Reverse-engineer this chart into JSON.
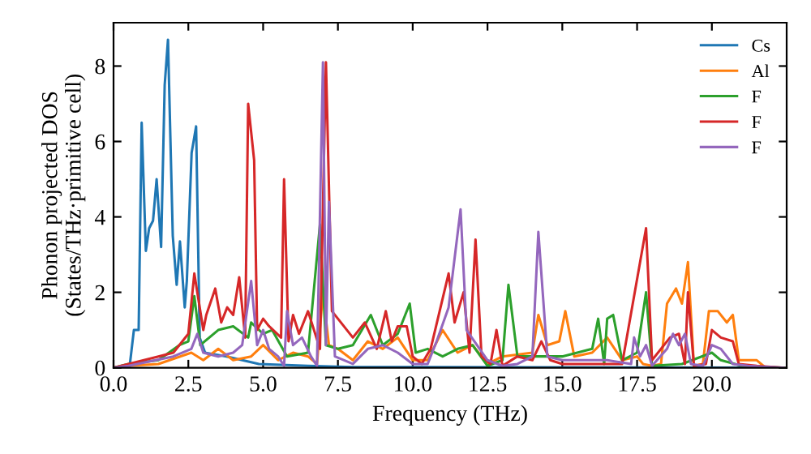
{
  "chart_data": {
    "type": "line",
    "xlabel": "Frequency (THz)",
    "ylabel": "Phonon projected DOS\n(States/THz·primitive cell)",
    "xlim": [
      0,
      22.5
    ],
    "ylim": [
      0,
      9.15
    ],
    "xticks": [
      {
        "value": 0,
        "label": "0.0"
      },
      {
        "value": 2.5,
        "label": "2.5"
      },
      {
        "value": 5,
        "label": "5.0"
      },
      {
        "value": 7.5,
        "label": "7.5"
      },
      {
        "value": 10,
        "label": "10.0"
      },
      {
        "value": 12.5,
        "label": "12.5"
      },
      {
        "value": 15,
        "label": "15.0"
      },
      {
        "value": 17.5,
        "label": "17.5"
      },
      {
        "value": 20,
        "label": "20.0"
      }
    ],
    "yticks": [
      0,
      2,
      4,
      6,
      8
    ],
    "grid": false,
    "legend": "top right",
    "marker": "none",
    "line_style": "solid",
    "series": [
      {
        "name": "Cs",
        "color": "#1f77b4",
        "x": [
          0,
          0.54,
          0.68,
          0.84,
          0.94,
          1.08,
          1.19,
          1.32,
          1.44,
          1.59,
          1.71,
          1.82,
          1.98,
          2.11,
          2.22,
          2.38,
          2.45,
          2.61,
          2.76,
          2.88,
          3.06,
          3.78,
          4.86,
          6.5,
          8,
          22.4
        ],
        "values": [
          0,
          0.05,
          1.0,
          1.0,
          6.5,
          3.1,
          3.7,
          3.9,
          5.0,
          3.2,
          7.5,
          8.7,
          3.5,
          2.2,
          3.35,
          1.6,
          2.3,
          5.7,
          6.4,
          0.8,
          0.4,
          0.3,
          0.1,
          0.05,
          0.02,
          0
        ]
      },
      {
        "name": "Al",
        "color": "#ff7f0e",
        "x": [
          0,
          0.5,
          1.5,
          2.6,
          3.0,
          3.5,
          4.0,
          4.6,
          5.0,
          5.5,
          6.0,
          6.5,
          6.8,
          7.0,
          7.2,
          7.5,
          8,
          8.5,
          9,
          9.5,
          10,
          10.5,
          11,
          11.5,
          12,
          12.5,
          13,
          14,
          14.2,
          14.5,
          14.9,
          15.1,
          15.4,
          16,
          16.5,
          17,
          17.5,
          17.7,
          18,
          18.3,
          18.5,
          18.8,
          19,
          19.2,
          19.4,
          19.7,
          19.9,
          20.2,
          20.5,
          20.7,
          20.9,
          21.5,
          21.8,
          22.4
        ],
        "values": [
          0,
          0.05,
          0.1,
          0.4,
          0.2,
          0.5,
          0.2,
          0.3,
          0.6,
          0.2,
          0.4,
          0.3,
          0.1,
          2.0,
          0.6,
          0.5,
          0.2,
          0.7,
          0.5,
          0.8,
          0.2,
          0.2,
          1.0,
          0.4,
          0.6,
          0.1,
          0.3,
          0.4,
          1.4,
          0.6,
          0.7,
          1.5,
          0.3,
          0.4,
          0.8,
          0.2,
          0.3,
          0.1,
          0.05,
          0.1,
          1.7,
          2.1,
          1.7,
          2.8,
          0.05,
          0.1,
          1.5,
          1.5,
          1.2,
          1.4,
          0.2,
          0.2,
          0,
          0
        ]
      },
      {
        "name": "F",
        "color": "#2ca02c",
        "x": [
          0,
          0.5,
          1.5,
          2.2,
          2.5,
          2.7,
          2.9,
          3.5,
          4,
          4.5,
          4.6,
          5,
          5.3,
          5.8,
          6.5,
          6.9,
          7.1,
          7.5,
          8.0,
          8.6,
          9,
          9.5,
          9.9,
          10.1,
          10.5,
          11,
          11.5,
          12,
          12.5,
          13.0,
          13.2,
          13.5,
          14,
          15,
          16,
          16.2,
          16.4,
          16.5,
          16.7,
          17,
          17.5,
          17.8,
          18,
          19,
          20,
          20.3,
          21,
          22.4
        ],
        "values": [
          0,
          0.1,
          0.2,
          0.6,
          0.7,
          1.9,
          0.6,
          1.0,
          1.1,
          0.8,
          1.2,
          0.9,
          1.0,
          0.3,
          0.4,
          3.8,
          0.6,
          0.5,
          0.6,
          1.4,
          0.6,
          0.9,
          1.7,
          0.4,
          0.5,
          0.3,
          0.5,
          0.6,
          0.05,
          0.2,
          2.2,
          0.3,
          0.3,
          0.3,
          0.5,
          1.3,
          0.1,
          1.3,
          1.4,
          0.2,
          0.4,
          2.0,
          0.05,
          0.1,
          0.4,
          0.2,
          0.05,
          0
        ]
      },
      {
        "name": "F",
        "color": "#d62728",
        "x": [
          0,
          0.5,
          1.5,
          2.0,
          2.5,
          2.7,
          3.0,
          3.1,
          3.4,
          3.6,
          3.8,
          4.0,
          4.2,
          4.4,
          4.5,
          4.7,
          4.8,
          5.0,
          5.2,
          5.6,
          5.7,
          5.85,
          6.0,
          6.2,
          6.5,
          6.9,
          7.1,
          7.3,
          7.5,
          8,
          8.4,
          8.8,
          9.1,
          9.3,
          9.5,
          9.8,
          10,
          10.3,
          10.6,
          10.9,
          11.2,
          11.4,
          11.7,
          11.9,
          12.1,
          12.3,
          12.6,
          12.8,
          13,
          13.5,
          14,
          14.3,
          14.6,
          15,
          17,
          17.8,
          18,
          18.6,
          18.9,
          19.1,
          19.2,
          19.4,
          19.8,
          20,
          20.3,
          20.7,
          20.9,
          21.5,
          22.4
        ],
        "values": [
          0,
          0.1,
          0.3,
          0.4,
          0.9,
          2.5,
          1.0,
          1.4,
          2.1,
          1.2,
          1.6,
          1.4,
          2.4,
          0.8,
          7.0,
          5.5,
          1.0,
          1.3,
          1.1,
          0.8,
          5.0,
          0.7,
          1.4,
          0.9,
          1.5,
          0.5,
          8.1,
          1.5,
          1.3,
          0.8,
          1.2,
          0.5,
          1.5,
          0.7,
          1.1,
          1.1,
          0.3,
          0.1,
          0.5,
          1.5,
          2.5,
          1.2,
          2.0,
          0.4,
          3.4,
          0.3,
          0.1,
          1.0,
          0.05,
          0.3,
          0.2,
          0.7,
          0.2,
          0.1,
          0.1,
          3.7,
          0.2,
          0.8,
          0.9,
          0.1,
          2.0,
          0.05,
          0.1,
          1.0,
          0.8,
          0.7,
          0.1,
          0.05,
          0
        ]
      },
      {
        "name": "F",
        "color": "#9467bd",
        "x": [
          0,
          0.5,
          2.0,
          2.6,
          2.8,
          3.0,
          3.5,
          4.0,
          4.3,
          4.6,
          4.8,
          5.0,
          5.2,
          5.5,
          5.7,
          5.8,
          6.0,
          6.3,
          6.6,
          6.8,
          7.0,
          7.1,
          7.2,
          7.4,
          8,
          8.5,
          9,
          9.5,
          10,
          10.5,
          10.8,
          11.2,
          11.6,
          11.8,
          12.5,
          13,
          13.5,
          14.0,
          14.2,
          14.5,
          15,
          16.5,
          17.3,
          17.4,
          17.6,
          17.8,
          18.0,
          18.5,
          18.7,
          18.9,
          19.1,
          19.3,
          19.7,
          20.0,
          20.3,
          20.7,
          21.2,
          22.4
        ],
        "values": [
          0,
          0.05,
          0.3,
          0.5,
          0.9,
          0.4,
          0.3,
          0.4,
          0.6,
          2.3,
          0.6,
          1.0,
          0.5,
          0.3,
          0.05,
          1.5,
          0.6,
          0.8,
          0.3,
          0.05,
          8.1,
          0.6,
          4.4,
          0.3,
          0.1,
          0.5,
          0.6,
          0.4,
          0.1,
          0.1,
          0.7,
          1.6,
          4.2,
          1.0,
          0.2,
          0.05,
          0.1,
          0.3,
          3.6,
          0.3,
          0.2,
          0.2,
          0.1,
          0.8,
          0.3,
          0.6,
          0.05,
          0.5,
          0.9,
          0.6,
          0.9,
          0.1,
          0.05,
          0.6,
          0.5,
          0.1,
          0.05,
          0
        ]
      }
    ]
  }
}
